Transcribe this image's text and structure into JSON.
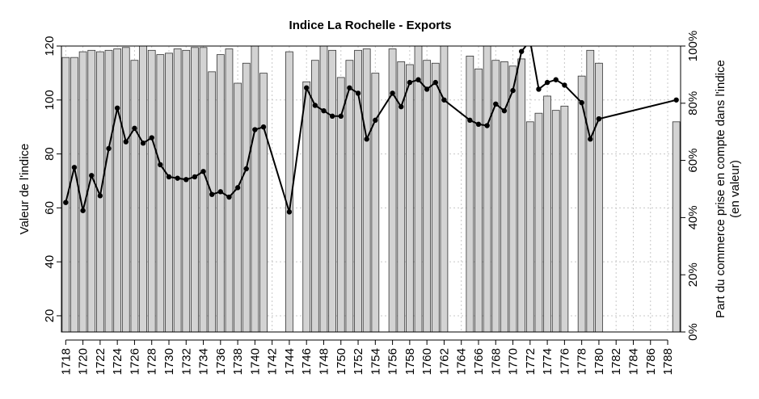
{
  "chart_data": {
    "type": "bar+line",
    "title": "Indice La Rochelle - Exports",
    "ylabel": "Valeur de l'indice",
    "ylabel_right": [
      "Part du commerce prise en compte dans l'indice",
      "(en valeur)"
    ],
    "ylim": [
      14,
      120
    ],
    "ylim_right": [
      0,
      100
    ],
    "y_ticks": [
      20,
      40,
      60,
      80,
      100,
      120
    ],
    "y_ticks_right": [
      "0%",
      "20%",
      "40%",
      "60%",
      "80%",
      "100%"
    ],
    "y_ticks_right_values": [
      0,
      20,
      40,
      60,
      80,
      100
    ],
    "x_range": [
      1717.5,
      1789.5
    ],
    "x_ticks": [
      "1718",
      "1720",
      "1722",
      "1724",
      "1726",
      "1728",
      "1730",
      "1732",
      "1734",
      "1736",
      "1738",
      "1740",
      "1742",
      "1744",
      "1746",
      "1748",
      "1750",
      "1752",
      "1754",
      "1756",
      "1758",
      "1760",
      "1762",
      "1764",
      "1766",
      "1768",
      "1770",
      "1772",
      "1774",
      "1776",
      "1778",
      "1780",
      "1782",
      "1784",
      "1786",
      "1788"
    ],
    "grid": true,
    "bar_series": {
      "name": "Part du commerce prise en compte (en valeur)",
      "years": [
        1718,
        1719,
        1720,
        1721,
        1722,
        1723,
        1724,
        1725,
        1726,
        1727,
        1728,
        1729,
        1730,
        1731,
        1732,
        1733,
        1734,
        1735,
        1736,
        1737,
        1738,
        1739,
        1740,
        1741,
        1744,
        1746,
        1747,
        1748,
        1749,
        1750,
        1751,
        1752,
        1753,
        1754,
        1756,
        1757,
        1758,
        1759,
        1760,
        1761,
        1762,
        1765,
        1766,
        1767,
        1768,
        1769,
        1770,
        1771,
        1772,
        1773,
        1774,
        1775,
        1776,
        1778,
        1779,
        1780,
        1789
      ],
      "values": [
        96,
        96,
        98,
        98.5,
        98,
        98.5,
        99,
        99.5,
        95,
        100,
        98.5,
        97,
        97.5,
        99,
        98.5,
        99.5,
        99.5,
        91,
        97,
        99,
        87,
        94,
        100,
        90.5,
        98,
        87.5,
        95,
        100,
        98.5,
        89,
        95,
        98.5,
        99,
        90.5,
        99,
        94.5,
        93.5,
        101,
        95,
        94,
        102,
        96.5,
        92,
        101,
        95,
        94.5,
        93,
        95.5,
        73.5,
        76.5,
        82.5,
        77.5,
        79,
        89.5,
        98.5,
        94,
        73.5
      ]
    },
    "line_series": {
      "name": "Valeur de l'indice",
      "segments": [
        {
          "years": [
            1718,
            1719,
            1720,
            1721,
            1722,
            1723,
            1724,
            1725,
            1726,
            1727,
            1728,
            1729,
            1730,
            1731,
            1732,
            1733,
            1734,
            1735,
            1736,
            1737,
            1738,
            1739,
            1740,
            1741,
            1744,
            1746,
            1747,
            1748,
            1749,
            1750,
            1751,
            1752,
            1753,
            1754,
            1756,
            1757,
            1758,
            1759,
            1760,
            1761,
            1762,
            1765,
            1766,
            1767,
            1768,
            1769,
            1770,
            1771,
            1772,
            1773,
            1774,
            1775,
            1776,
            1778,
            1779,
            1780
          ],
          "values": [
            62,
            75,
            59,
            72,
            64.5,
            82,
            97,
            84.5,
            89.5,
            84,
            86,
            76,
            71.5,
            71,
            70.5,
            71.5,
            73.5,
            65,
            66,
            64,
            67.5,
            74.5,
            89,
            90,
            58.5,
            104.5,
            98,
            96,
            94,
            94,
            104.5,
            102.5,
            85.5,
            92.5,
            102.5,
            97.5,
            106.5,
            107.5,
            104,
            106.5,
            100,
            92.5,
            91,
            90.5,
            98.5,
            96,
            103.5,
            118,
            122,
            104,
            106.5,
            107.5,
            105.5,
            99,
            85.5,
            93
          ]
        },
        {
          "years": [
            1780,
            1789
          ],
          "values": [
            93,
            100
          ]
        }
      ]
    }
  }
}
